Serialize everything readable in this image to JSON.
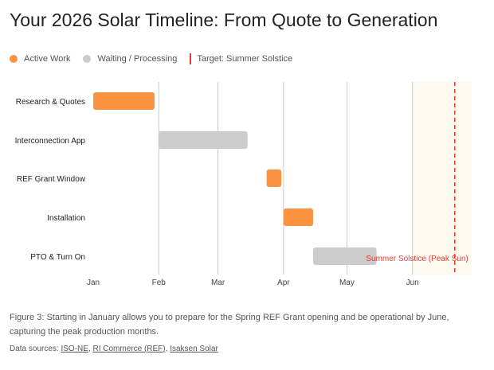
{
  "chart_data": {
    "type": "gantt",
    "title": "Your 2026 Solar Timeline: From Quote to Generation",
    "legend": [
      {
        "label": "Active Work",
        "color": "#fb9340",
        "kind": "dot"
      },
      {
        "label": "Waiting / Processing",
        "color": "#cccccc",
        "kind": "dot"
      },
      {
        "label": "Target: Summer Solstice",
        "color": "#e53935",
        "kind": "line"
      }
    ],
    "x_unit": "day of year 2026 (0 = Jan 1)",
    "xlim": [
      0,
      179
    ],
    "ticks": [
      {
        "label": "Jan",
        "day": 0
      },
      {
        "label": "Feb",
        "day": 31
      },
      {
        "label": "Mar",
        "day": 59
      },
      {
        "label": "Apr",
        "day": 90
      },
      {
        "label": "May",
        "day": 120
      },
      {
        "label": "Jun",
        "day": 151
      }
    ],
    "tasks": [
      {
        "label": "Research & Quotes",
        "start": 0,
        "end": 29,
        "type": "active"
      },
      {
        "label": "Interconnection App",
        "start": 31,
        "end": 73,
        "type": "waiting"
      },
      {
        "label": "REF Grant Window",
        "start": 82,
        "end": 89,
        "type": "active"
      },
      {
        "label": "Installation",
        "start": 90,
        "end": 104,
        "type": "active"
      },
      {
        "label": "PTO & Turn On",
        "start": 104,
        "end": 134,
        "type": "waiting"
      }
    ],
    "highlight_region": {
      "start": 151,
      "end": 179,
      "color": "#fffaf0"
    },
    "target_line": {
      "day": 171,
      "label": "Summer Solstice (Peak Sun)",
      "color": "#e53935"
    }
  },
  "caption": "Figure 3: Starting in January allows you to prepare for the Spring REF Grant opening and be operational by June, capturing the peak production months.",
  "sources": {
    "prefix": "Data sources: ",
    "links": [
      "ISO-NE",
      "RI Commerce (REF)",
      "Isaksen Solar"
    ]
  }
}
